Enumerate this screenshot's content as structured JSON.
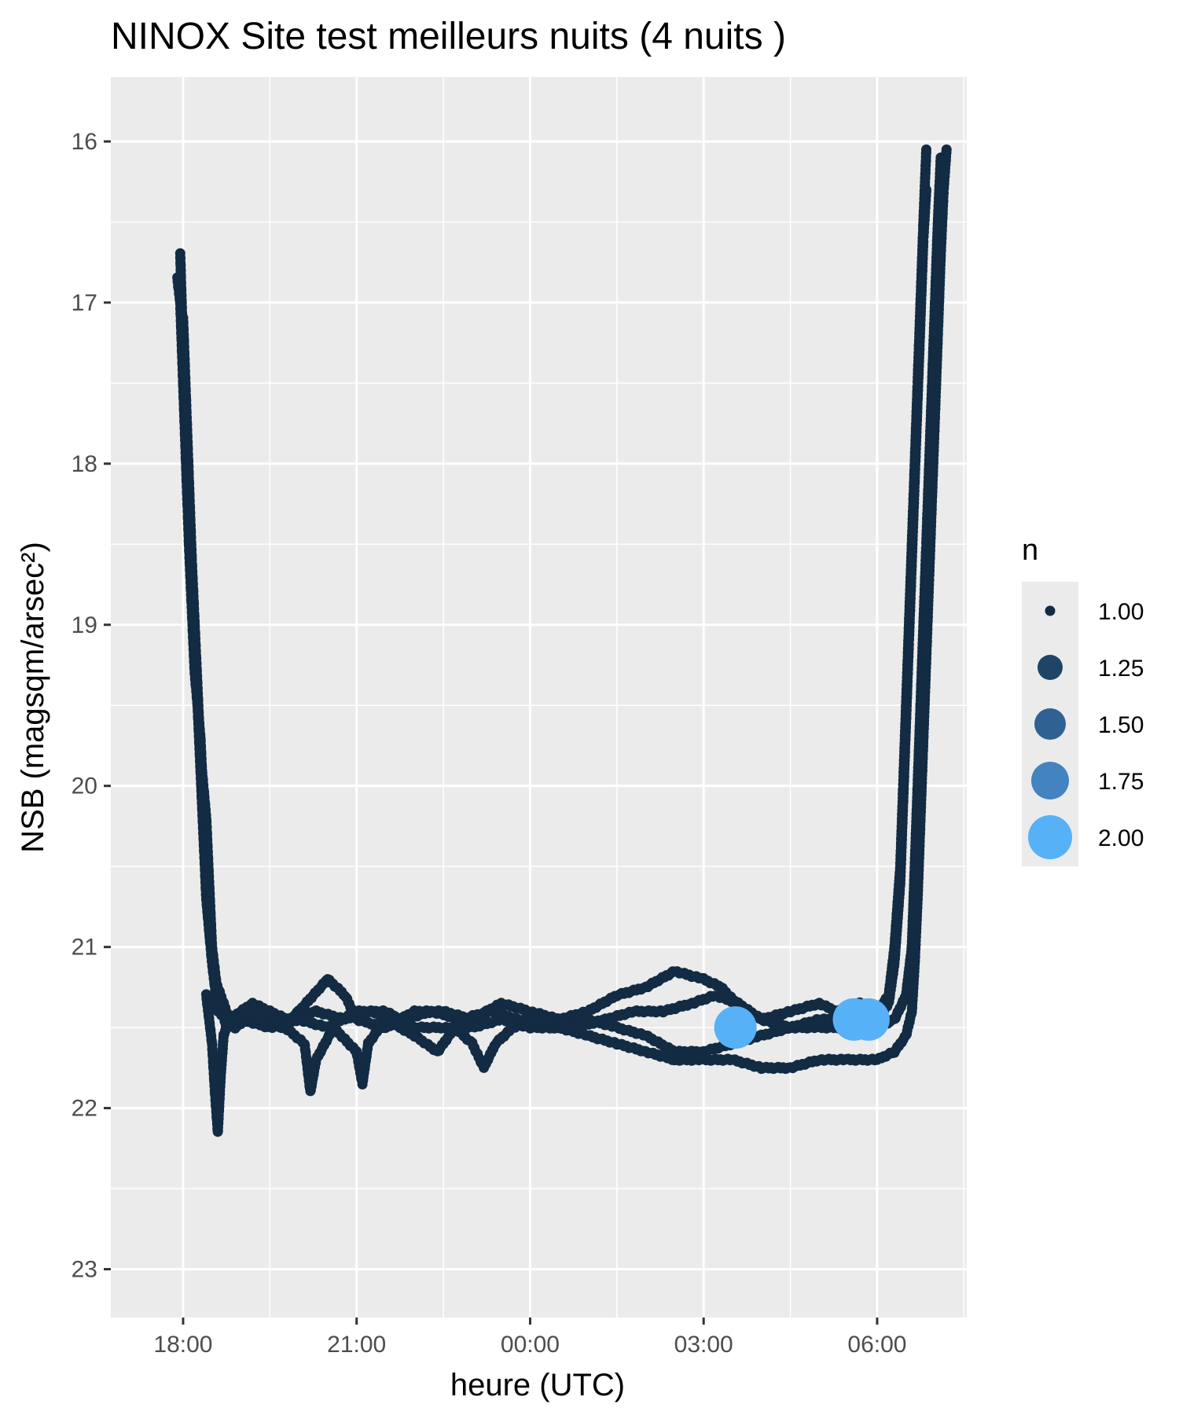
{
  "chart_data": {
    "type": "scatter",
    "title": "NINOX Site test meilleurs nuits (4 nuits )",
    "xlabel": "heure (UTC)",
    "ylabel": "NSB (magsqm/arsec²)",
    "x_unit": "hours UTC (values past 24 are after midnight)",
    "xlim": [
      16.75,
      31.55
    ],
    "ylim": [
      23.3,
      15.6
    ],
    "y_reversed": true,
    "x_ticks": [
      {
        "value": 18,
        "label": "18:00"
      },
      {
        "value": 21,
        "label": "21:00"
      },
      {
        "value": 24,
        "label": "00:00"
      },
      {
        "value": 27,
        "label": "03:00"
      },
      {
        "value": 30,
        "label": "06:00"
      }
    ],
    "y_ticks": [
      {
        "value": 16,
        "label": "16"
      },
      {
        "value": 17,
        "label": "17"
      },
      {
        "value": 18,
        "label": "18"
      },
      {
        "value": 19,
        "label": "19"
      },
      {
        "value": 20,
        "label": "20"
      },
      {
        "value": 21,
        "label": "21"
      },
      {
        "value": 22,
        "label": "22"
      },
      {
        "value": 23,
        "label": "23"
      }
    ],
    "grid": true,
    "legend": {
      "title": "n",
      "position": "right",
      "entries": [
        {
          "label": "1.00",
          "color": "#132b43"
        },
        {
          "label": "1.25",
          "color": "#1f4466"
        },
        {
          "label": "1.50",
          "color": "#2f6293"
        },
        {
          "label": "1.75",
          "color": "#4283c0"
        },
        {
          "label": "2.00",
          "color": "#56b1f7"
        }
      ]
    },
    "series": [
      {
        "points": [
          [
            17.95,
            16.7
          ],
          [
            18.0,
            17.3
          ],
          [
            18.05,
            17.8
          ],
          [
            18.1,
            18.3
          ],
          [
            18.15,
            18.7
          ],
          [
            18.2,
            19.1
          ],
          [
            18.25,
            19.5
          ],
          [
            18.3,
            19.9
          ],
          [
            18.35,
            20.3
          ],
          [
            18.4,
            20.7
          ],
          [
            18.5,
            21.1
          ],
          [
            18.6,
            21.4
          ],
          [
            18.9,
            21.5
          ],
          [
            19.3,
            21.4
          ],
          [
            19.7,
            21.5
          ],
          [
            20.0,
            21.4
          ],
          [
            20.5,
            21.2
          ],
          [
            20.8,
            21.3
          ],
          [
            21.0,
            21.45
          ],
          [
            21.5,
            21.5
          ],
          [
            22.0,
            21.4
          ],
          [
            22.5,
            21.4
          ],
          [
            23.0,
            21.45
          ],
          [
            23.5,
            21.35
          ],
          [
            24.0,
            21.4
          ],
          [
            24.5,
            21.45
          ],
          [
            25.0,
            21.4
          ],
          [
            25.5,
            21.3
          ],
          [
            26.0,
            21.25
          ],
          [
            26.5,
            21.15
          ],
          [
            27.0,
            21.2
          ],
          [
            27.3,
            21.25
          ],
          [
            27.7,
            21.4
          ],
          [
            28.0,
            21.45
          ],
          [
            28.5,
            21.5
          ],
          [
            29.0,
            21.5
          ],
          [
            29.5,
            21.5
          ],
          [
            30.0,
            21.5
          ],
          [
            30.3,
            21.45
          ],
          [
            30.5,
            21.3
          ],
          [
            30.6,
            21.0
          ],
          [
            30.65,
            20.5
          ],
          [
            30.7,
            20.0
          ],
          [
            30.75,
            19.5
          ],
          [
            30.8,
            19.0
          ],
          [
            30.85,
            18.5
          ],
          [
            30.9,
            18.0
          ],
          [
            30.95,
            17.5
          ],
          [
            31.0,
            17.0
          ],
          [
            31.05,
            16.5
          ],
          [
            31.1,
            16.1
          ]
        ]
      },
      {
        "points": [
          [
            17.9,
            16.85
          ],
          [
            17.95,
            17.0
          ],
          [
            18.0,
            17.5
          ],
          [
            18.05,
            18.0
          ],
          [
            18.1,
            18.5
          ],
          [
            18.15,
            18.9
          ],
          [
            18.2,
            19.3
          ],
          [
            18.3,
            19.7
          ],
          [
            18.35,
            20.1
          ],
          [
            18.4,
            20.5
          ],
          [
            18.45,
            20.9
          ],
          [
            18.55,
            21.2
          ],
          [
            18.8,
            21.45
          ],
          [
            19.2,
            21.35
          ],
          [
            19.8,
            21.45
          ],
          [
            20.3,
            21.4
          ],
          [
            20.8,
            21.45
          ],
          [
            21.2,
            21.4
          ],
          [
            21.8,
            21.45
          ],
          [
            22.3,
            21.4
          ],
          [
            22.8,
            21.45
          ],
          [
            23.3,
            21.4
          ],
          [
            23.8,
            21.45
          ],
          [
            24.3,
            21.5
          ],
          [
            24.8,
            21.5
          ],
          [
            25.3,
            21.45
          ],
          [
            25.8,
            21.4
          ],
          [
            26.3,
            21.4
          ],
          [
            26.8,
            21.35
          ],
          [
            27.2,
            21.3
          ],
          [
            27.6,
            21.35
          ],
          [
            28.0,
            21.45
          ],
          [
            28.5,
            21.4
          ],
          [
            29.0,
            21.35
          ],
          [
            29.3,
            21.4
          ],
          [
            29.7,
            21.35
          ],
          [
            30.0,
            21.4
          ],
          [
            30.2,
            21.3
          ],
          [
            30.3,
            21.0
          ],
          [
            30.4,
            20.5
          ],
          [
            30.45,
            20.0
          ],
          [
            30.5,
            19.5
          ],
          [
            30.55,
            19.0
          ],
          [
            30.6,
            18.5
          ],
          [
            30.65,
            18.0
          ],
          [
            30.7,
            17.5
          ],
          [
            30.75,
            17.0
          ],
          [
            30.8,
            16.5
          ],
          [
            30.85,
            16.05
          ]
        ]
      },
      {
        "points": [
          [
            18.0,
            17.1
          ],
          [
            18.05,
            17.6
          ],
          [
            18.1,
            18.1
          ],
          [
            18.15,
            18.6
          ],
          [
            18.2,
            19.0
          ],
          [
            18.25,
            19.4
          ],
          [
            18.3,
            19.8
          ],
          [
            18.4,
            20.2
          ],
          [
            18.45,
            20.6
          ],
          [
            18.5,
            21.0
          ],
          [
            18.6,
            21.3
          ],
          [
            18.75,
            21.5
          ],
          [
            19.0,
            21.45
          ],
          [
            19.5,
            21.5
          ],
          [
            20.0,
            21.45
          ],
          [
            20.5,
            21.5
          ],
          [
            21.0,
            21.4
          ],
          [
            21.5,
            21.4
          ],
          [
            22.0,
            21.5
          ],
          [
            22.5,
            21.5
          ],
          [
            23.0,
            21.5
          ],
          [
            23.5,
            21.45
          ],
          [
            24.0,
            21.5
          ],
          [
            24.5,
            21.5
          ],
          [
            25.0,
            21.45
          ],
          [
            25.5,
            21.5
          ],
          [
            26.0,
            21.55
          ],
          [
            26.5,
            21.65
          ],
          [
            27.0,
            21.65
          ],
          [
            27.5,
            21.6
          ],
          [
            28.0,
            21.55
          ],
          [
            28.5,
            21.5
          ],
          [
            29.0,
            21.45
          ],
          [
            29.5,
            21.45
          ],
          [
            30.0,
            21.45
          ],
          [
            30.2,
            21.35
          ],
          [
            30.3,
            21.1
          ],
          [
            30.4,
            20.6
          ],
          [
            30.45,
            20.1
          ],
          [
            30.5,
            19.6
          ],
          [
            30.55,
            19.1
          ],
          [
            30.6,
            18.6
          ],
          [
            30.65,
            18.1
          ],
          [
            30.7,
            17.6
          ],
          [
            30.75,
            17.1
          ],
          [
            30.8,
            16.6
          ],
          [
            30.85,
            16.3
          ]
        ]
      },
      {
        "points": [
          [
            18.4,
            21.3
          ],
          [
            18.5,
            21.6
          ],
          [
            18.55,
            21.9
          ],
          [
            18.6,
            22.15
          ],
          [
            18.65,
            21.8
          ],
          [
            18.7,
            21.55
          ],
          [
            18.8,
            21.45
          ],
          [
            19.2,
            21.4
          ],
          [
            19.6,
            21.45
          ],
          [
            20.1,
            21.6
          ],
          [
            20.2,
            21.9
          ],
          [
            20.3,
            21.7
          ],
          [
            20.6,
            21.5
          ],
          [
            21.0,
            21.65
          ],
          [
            21.1,
            21.85
          ],
          [
            21.2,
            21.6
          ],
          [
            21.5,
            21.45
          ],
          [
            22.0,
            21.55
          ],
          [
            22.4,
            21.65
          ],
          [
            22.7,
            21.5
          ],
          [
            23.0,
            21.6
          ],
          [
            23.2,
            21.75
          ],
          [
            23.4,
            21.6
          ],
          [
            23.7,
            21.5
          ],
          [
            24.1,
            21.45
          ],
          [
            24.5,
            21.5
          ],
          [
            25.0,
            21.55
          ],
          [
            25.5,
            21.6
          ],
          [
            26.0,
            21.65
          ],
          [
            26.5,
            21.7
          ],
          [
            27.0,
            21.7
          ],
          [
            27.5,
            21.7
          ],
          [
            28.0,
            21.75
          ],
          [
            28.5,
            21.75
          ],
          [
            29.0,
            21.7
          ],
          [
            29.5,
            21.7
          ],
          [
            30.0,
            21.7
          ],
          [
            30.3,
            21.65
          ],
          [
            30.5,
            21.55
          ],
          [
            30.6,
            21.4
          ],
          [
            30.65,
            21.1
          ],
          [
            30.7,
            20.7
          ],
          [
            30.75,
            20.2
          ],
          [
            30.8,
            19.7
          ],
          [
            30.85,
            19.2
          ],
          [
            30.9,
            18.7
          ],
          [
            30.95,
            18.2
          ],
          [
            31.0,
            17.7
          ],
          [
            31.05,
            17.2
          ],
          [
            31.1,
            16.7
          ],
          [
            31.15,
            16.3
          ],
          [
            31.2,
            16.05
          ]
        ]
      }
    ],
    "highlight_points": [
      {
        "x": 27.55,
        "y": 21.5,
        "n": 2.0
      },
      {
        "x": 29.6,
        "y": 21.45,
        "n": 2.0
      },
      {
        "x": 29.85,
        "y": 21.45,
        "n": 2.0
      }
    ]
  }
}
